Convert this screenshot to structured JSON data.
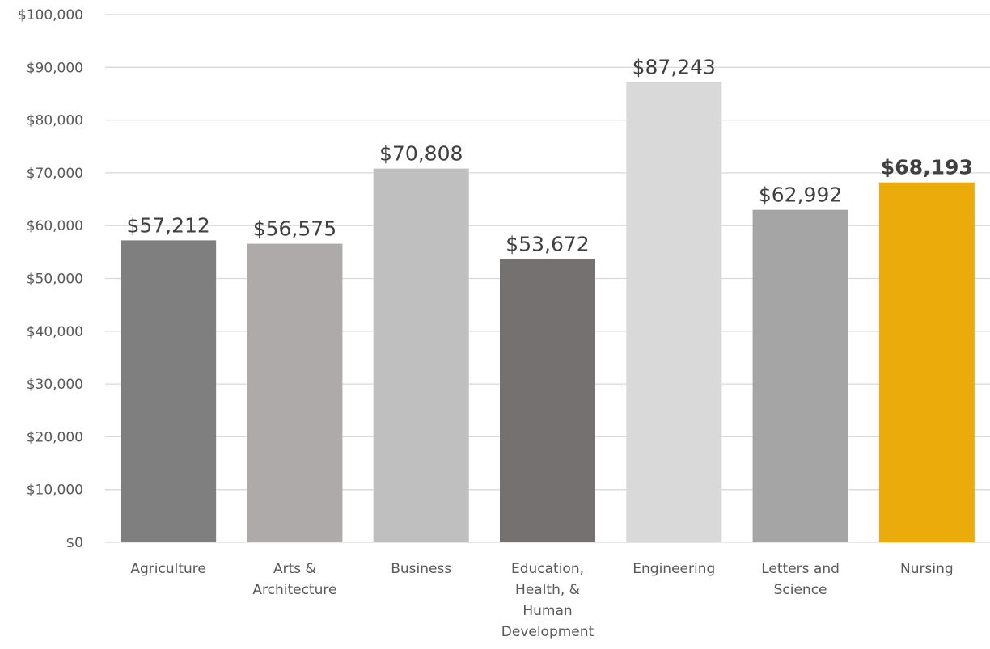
{
  "chart_data": {
    "type": "bar",
    "title": "",
    "xlabel": "",
    "ylabel": "",
    "ylim": [
      0,
      100000
    ],
    "yticks": [
      0,
      10000,
      20000,
      30000,
      40000,
      50000,
      60000,
      70000,
      80000,
      90000,
      100000
    ],
    "ytick_labels": [
      "$0",
      "$10,000",
      "$20,000",
      "$30,000",
      "$40,000",
      "$50,000",
      "$60,000",
      "$70,000",
      "$80,000",
      "$90,000",
      "$100,000"
    ],
    "grid": true,
    "legend": "none",
    "categories": [
      [
        "Agriculture"
      ],
      [
        "Arts &",
        "Architecture"
      ],
      [
        "Business"
      ],
      [
        "Education,",
        "Health, &",
        "Human",
        "Development"
      ],
      [
        "Engineering"
      ],
      [
        "Letters and",
        "Science"
      ],
      [
        "Nursing"
      ]
    ],
    "values": [
      57212,
      56575,
      70808,
      53672,
      87243,
      62992,
      68193
    ],
    "value_labels": [
      "$57,212",
      "$56,575",
      "$70,808",
      "$53,672",
      "$87,243",
      "$62,992",
      "$68,193"
    ],
    "highlight": "Nursing",
    "colors": [
      "#7f7f7f",
      "#aeaaaa",
      "#bfbfbf",
      "#767171",
      "#d9d9d9",
      "#a5a5a5",
      "#ebab0b"
    ]
  }
}
